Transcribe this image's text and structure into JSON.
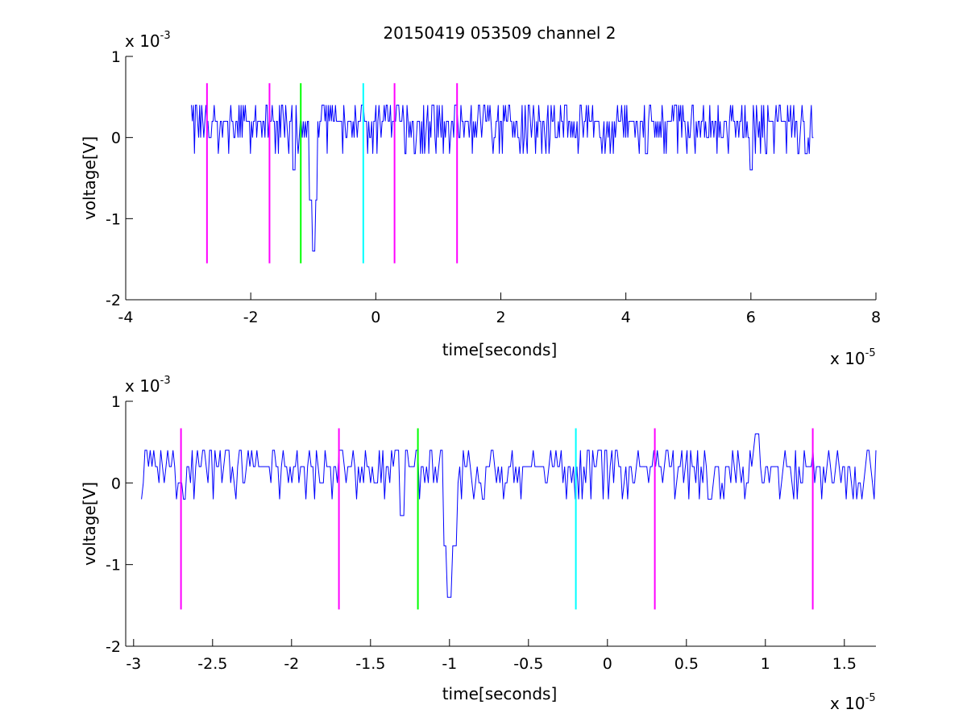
{
  "title": "20150419 053509 channel 2",
  "colors": {
    "signal": "#0000ff",
    "magenta": "#ff00ff",
    "green": "#00ff00",
    "cyan": "#00ffff",
    "axis": "#000000"
  },
  "chart_data": [
    {
      "type": "line",
      "xlabel": "time[seconds]",
      "ylabel": "voltage[V]",
      "x_multiplier": {
        "base": "x 10",
        "exp": "-5"
      },
      "y_multiplier": {
        "base": "x 10",
        "exp": "-3"
      },
      "xlim": [
        -4,
        8
      ],
      "ylim": [
        -2,
        1
      ],
      "xticks": [
        "-4",
        "-2",
        "0",
        "2",
        "4",
        "6",
        "8"
      ],
      "xtick_values": [
        -4,
        -2,
        0,
        2,
        4,
        6,
        8
      ],
      "yticks": [
        "-2",
        "-1",
        "0",
        "1"
      ],
      "ytick_values": [
        -2,
        -1,
        0,
        1
      ],
      "signal_range": [
        -2.95,
        7.0
      ],
      "markers": [
        {
          "x": -2.7,
          "y": [
            -1.55,
            0.67
          ],
          "color": "magenta"
        },
        {
          "x": -1.7,
          "y": [
            -1.55,
            0.67
          ],
          "color": "magenta"
        },
        {
          "x": -1.2,
          "y": [
            -1.55,
            0.67
          ],
          "color": "green"
        },
        {
          "x": -0.2,
          "y": [
            -1.55,
            0.67
          ],
          "color": "cyan"
        },
        {
          "x": 0.3,
          "y": [
            -1.55,
            0.67
          ],
          "color": "magenta"
        },
        {
          "x": 1.3,
          "y": [
            -1.55,
            0.67
          ],
          "color": "magenta"
        }
      ],
      "signal_features": [
        {
          "x": -1.0,
          "y": -1.4
        },
        {
          "x": -1.3,
          "y": -0.4
        },
        {
          "x": 6.0,
          "y": -0.4
        }
      ]
    },
    {
      "type": "line",
      "xlabel": "time[seconds]",
      "ylabel": "voltage[V]",
      "x_multiplier": {
        "base": "x 10",
        "exp": "-5"
      },
      "y_multiplier": {
        "base": "x 10",
        "exp": "-3"
      },
      "xlim": [
        -3.05,
        1.7
      ],
      "ylim": [
        -2,
        1
      ],
      "xticks": [
        "-3",
        "-2.5",
        "-2",
        "-1.5",
        "-1",
        "-0.5",
        "0",
        "0.5",
        "1",
        "1.5"
      ],
      "xtick_values": [
        -3,
        -2.5,
        -2,
        -1.5,
        -1,
        -0.5,
        0,
        0.5,
        1,
        1.5
      ],
      "yticks": [
        "-2",
        "-1",
        "0",
        "1"
      ],
      "ytick_values": [
        -2,
        -1,
        0,
        1
      ],
      "signal_range": [
        -2.95,
        1.7
      ],
      "markers": [
        {
          "x": -2.7,
          "y": [
            -1.55,
            0.67
          ],
          "color": "magenta"
        },
        {
          "x": -1.7,
          "y": [
            -1.55,
            0.67
          ],
          "color": "magenta"
        },
        {
          "x": -1.2,
          "y": [
            -1.55,
            0.67
          ],
          "color": "green"
        },
        {
          "x": -0.2,
          "y": [
            -1.55,
            0.67
          ],
          "color": "cyan"
        },
        {
          "x": 0.3,
          "y": [
            -1.55,
            0.67
          ],
          "color": "magenta"
        },
        {
          "x": 1.3,
          "y": [
            -1.55,
            0.67
          ],
          "color": "magenta"
        }
      ],
      "signal_features": [
        {
          "x": -1.0,
          "y": -1.4
        },
        {
          "x": -1.3,
          "y": -0.4
        },
        {
          "x": 0.95,
          "y": 0.6
        }
      ]
    }
  ]
}
